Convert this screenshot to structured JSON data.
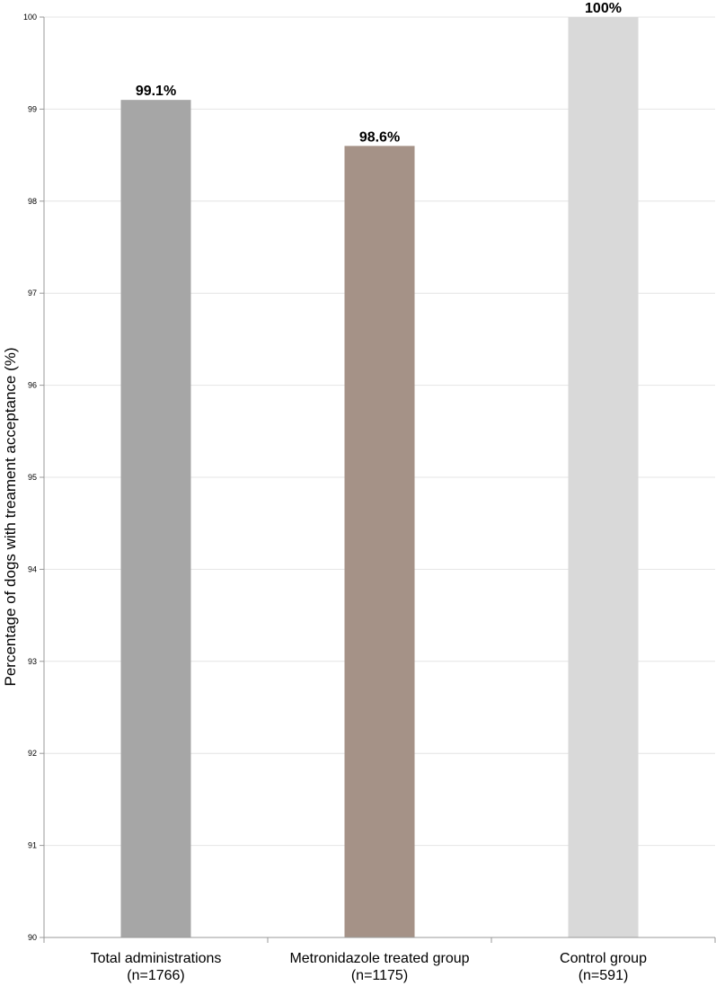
{
  "chart_data": {
    "type": "bar",
    "title": "",
    "xlabel": "",
    "ylabel": "Percentage of dogs with treament acceptance (%)",
    "ylim": [
      90,
      100
    ],
    "yticks": [
      90,
      91,
      92,
      93,
      94,
      95,
      96,
      97,
      98,
      99,
      100
    ],
    "grid": true,
    "categories": [
      [
        "Total administrations",
        "(n=1766)"
      ],
      [
        "Metronidazole treated group",
        "(n=1175)"
      ],
      [
        "Control group",
        "(n=591)"
      ]
    ],
    "values": [
      99.1,
      98.6,
      100
    ],
    "data_labels": [
      "99.1%",
      "98.6%",
      "100%"
    ],
    "colors": [
      "#a6a6a6",
      "#a59287",
      "#d9d9d9"
    ]
  }
}
